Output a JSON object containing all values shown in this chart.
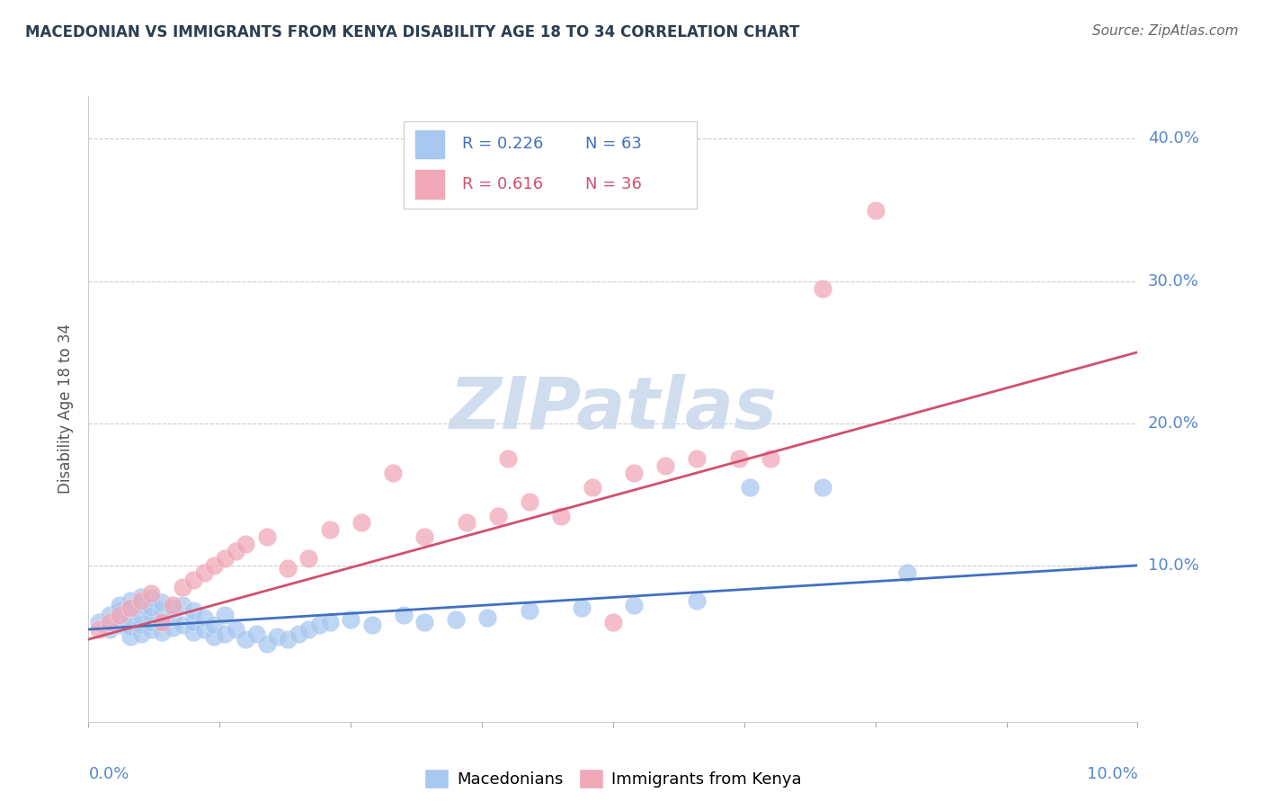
{
  "title": "MACEDONIAN VS IMMIGRANTS FROM KENYA DISABILITY AGE 18 TO 34 CORRELATION CHART",
  "source": "Source: ZipAtlas.com",
  "ylabel": "Disability Age 18 to 34",
  "ytick_vals": [
    0.0,
    0.1,
    0.2,
    0.3,
    0.4
  ],
  "ytick_labels": [
    "",
    "10.0%",
    "20.0%",
    "30.0%",
    "40.0%"
  ],
  "xlim": [
    0.0,
    0.1
  ],
  "ylim": [
    -0.01,
    0.43
  ],
  "legend_r_blue": "R = 0.226",
  "legend_n_blue": "N = 63",
  "legend_r_pink": "R = 0.616",
  "legend_n_pink": "N = 36",
  "blue_color": "#A8C8F0",
  "pink_color": "#F0A8B8",
  "blue_line_color": "#4070C0",
  "pink_line_color": "#D05070",
  "watermark_color": "#C8D8EC",
  "title_color": "#2C3E50",
  "source_color": "#666666",
  "tick_color": "#5588CC",
  "ylabel_color": "#555555",
  "grid_color": "#CCCCCC",
  "mac_x": [
    0.001,
    0.002,
    0.002,
    0.003,
    0.003,
    0.003,
    0.003,
    0.004,
    0.004,
    0.004,
    0.004,
    0.004,
    0.005,
    0.005,
    0.005,
    0.005,
    0.005,
    0.006,
    0.006,
    0.006,
    0.006,
    0.006,
    0.007,
    0.007,
    0.007,
    0.007,
    0.008,
    0.008,
    0.008,
    0.009,
    0.009,
    0.01,
    0.01,
    0.01,
    0.011,
    0.011,
    0.012,
    0.012,
    0.013,
    0.013,
    0.014,
    0.015,
    0.016,
    0.017,
    0.018,
    0.019,
    0.02,
    0.021,
    0.022,
    0.023,
    0.025,
    0.027,
    0.03,
    0.032,
    0.035,
    0.038,
    0.042,
    0.047,
    0.052,
    0.058,
    0.063,
    0.07,
    0.078
  ],
  "mac_y": [
    0.06,
    0.055,
    0.065,
    0.058,
    0.062,
    0.068,
    0.072,
    0.05,
    0.057,
    0.063,
    0.07,
    0.075,
    0.052,
    0.058,
    0.065,
    0.072,
    0.078,
    0.055,
    0.06,
    0.066,
    0.071,
    0.077,
    0.053,
    0.06,
    0.068,
    0.074,
    0.056,
    0.063,
    0.07,
    0.058,
    0.072,
    0.053,
    0.06,
    0.068,
    0.055,
    0.063,
    0.05,
    0.058,
    0.052,
    0.065,
    0.055,
    0.048,
    0.052,
    0.045,
    0.05,
    0.048,
    0.052,
    0.055,
    0.058,
    0.06,
    0.062,
    0.058,
    0.065,
    0.06,
    0.062,
    0.063,
    0.068,
    0.07,
    0.072,
    0.075,
    0.155,
    0.155,
    0.095
  ],
  "ken_x": [
    0.001,
    0.002,
    0.003,
    0.004,
    0.005,
    0.006,
    0.007,
    0.008,
    0.009,
    0.01,
    0.011,
    0.012,
    0.013,
    0.014,
    0.015,
    0.017,
    0.019,
    0.021,
    0.023,
    0.026,
    0.029,
    0.032,
    0.036,
    0.039,
    0.04,
    0.042,
    0.045,
    0.048,
    0.05,
    0.052,
    0.055,
    0.058,
    0.062,
    0.065,
    0.07,
    0.075
  ],
  "ken_y": [
    0.055,
    0.06,
    0.065,
    0.07,
    0.075,
    0.08,
    0.06,
    0.072,
    0.085,
    0.09,
    0.095,
    0.1,
    0.105,
    0.11,
    0.115,
    0.12,
    0.098,
    0.105,
    0.125,
    0.13,
    0.165,
    0.12,
    0.13,
    0.135,
    0.175,
    0.145,
    0.135,
    0.155,
    0.06,
    0.165,
    0.17,
    0.175,
    0.175,
    0.175,
    0.295,
    0.35
  ]
}
